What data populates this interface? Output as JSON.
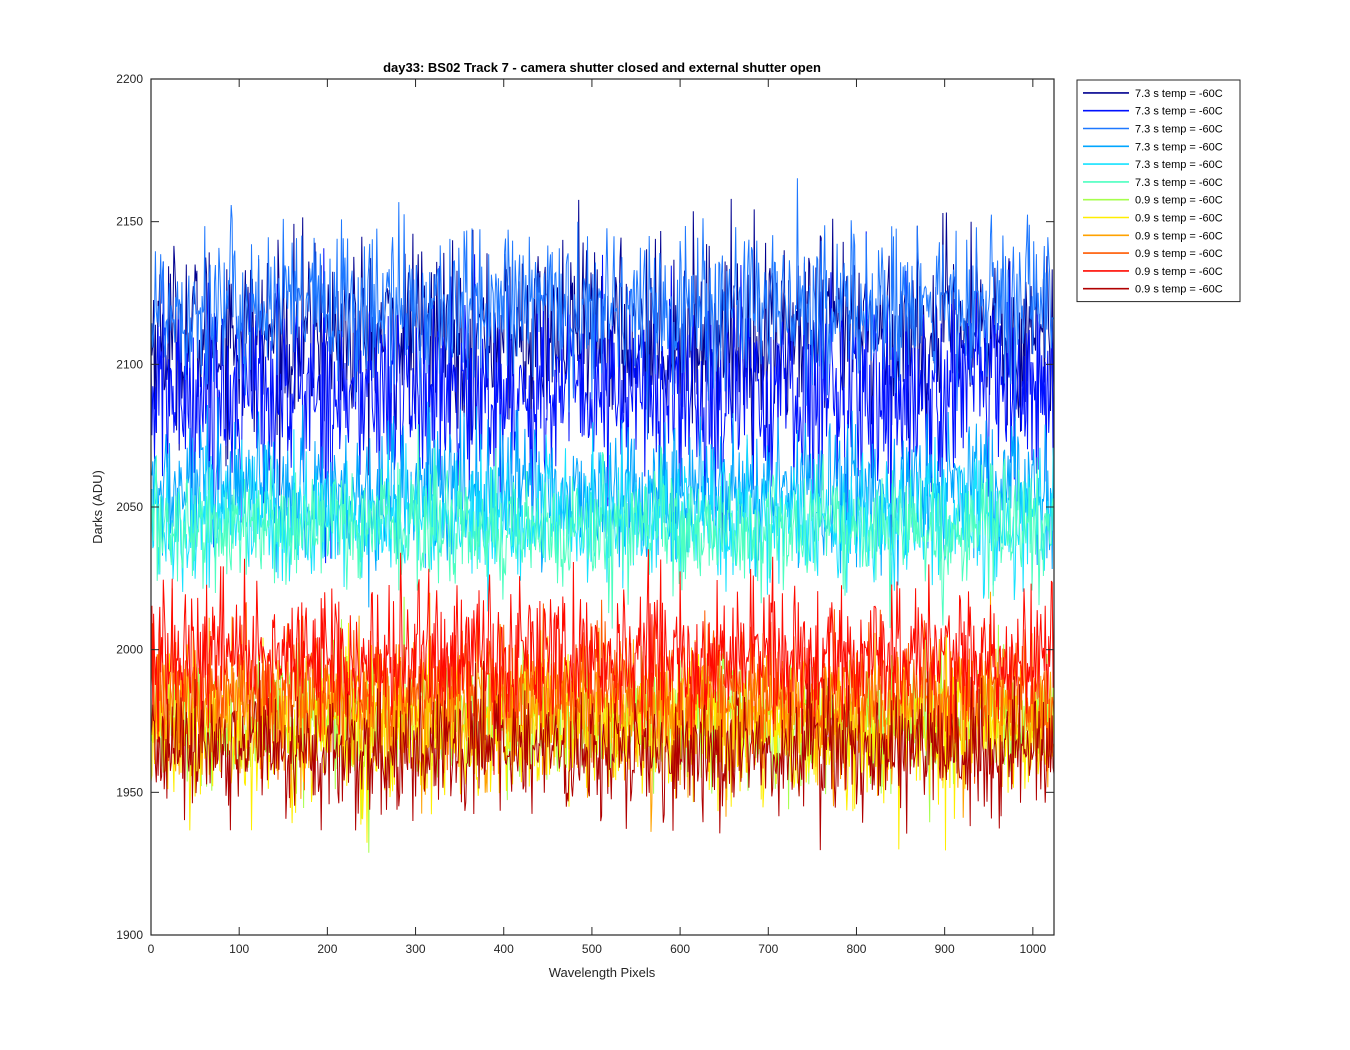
{
  "chart_data": {
    "type": "line",
    "title": "day33: BS02  Track 7 - camera shutter closed and external shutter open",
    "xlabel": "Wavelength Pixels",
    "ylabel": "Darks (ADU)",
    "xlim": [
      0,
      1024
    ],
    "ylim": [
      1900,
      2200
    ],
    "xticks": [
      0,
      100,
      200,
      300,
      400,
      500,
      600,
      700,
      800,
      900,
      1000
    ],
    "yticks": [
      1900,
      1950,
      2000,
      2050,
      2100,
      2150,
      2200
    ],
    "grid": false,
    "legend_position": "outside top-right",
    "series": [
      {
        "name": "7.3 s temp = -60C",
        "color": "#00008f",
        "mean": 2110,
        "spread": 16,
        "x_start": 0,
        "x_end": 1024
      },
      {
        "name": "7.3 s temp = -60C",
        "color": "#0010ff",
        "mean": 2090,
        "spread": 18,
        "x_start": 0,
        "x_end": 1024
      },
      {
        "name": "7.3 s temp = -60C",
        "color": "#1e78ff",
        "mean": 2120,
        "spread": 14,
        "x_start": 0,
        "x_end": 1024
      },
      {
        "name": "7.3 s temp = -60C",
        "color": "#00a6ff",
        "mean": 2055,
        "spread": 12,
        "x_start": 0,
        "x_end": 1024
      },
      {
        "name": "7.3 s temp = -60C",
        "color": "#16e2ff",
        "mean": 2045,
        "spread": 11,
        "x_start": 0,
        "x_end": 1024
      },
      {
        "name": "7.3 s temp = -60C",
        "color": "#4dffc0",
        "mean": 2043,
        "spread": 10,
        "x_start": 0,
        "x_end": 1024
      },
      {
        "name": "0.9 s temp = -60C",
        "color": "#a6ff4d",
        "mean": 1975,
        "spread": 11,
        "x_start": 0,
        "x_end": 1024
      },
      {
        "name": "0.9 s temp = -60C",
        "color": "#ffee00",
        "mean": 1972,
        "spread": 13,
        "x_start": 0,
        "x_end": 1024
      },
      {
        "name": "0.9 s temp = -60C",
        "color": "#ffa200",
        "mean": 1978,
        "spread": 12,
        "x_start": 0,
        "x_end": 1024
      },
      {
        "name": "0.9 s temp = -60C",
        "color": "#ff5a00",
        "mean": 1985,
        "spread": 11,
        "x_start": 0,
        "x_end": 1024
      },
      {
        "name": "0.9 s temp = -60C",
        "color": "#ff0a00",
        "mean": 1998,
        "spread": 12,
        "x_start": 0,
        "x_end": 1024
      },
      {
        "name": "0.9 s temp = -60C",
        "color": "#b00000",
        "mean": 1965,
        "spread": 11,
        "x_start": 0,
        "x_end": 1024
      }
    ]
  }
}
